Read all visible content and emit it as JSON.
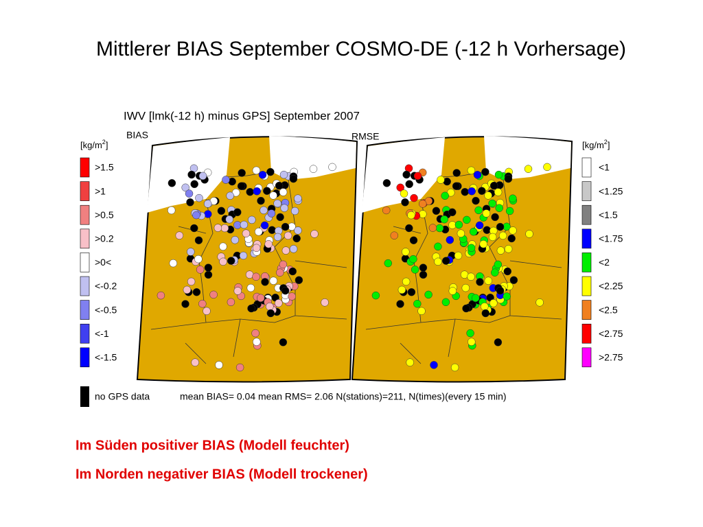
{
  "title": "Mittlerer BIAS September COSMO-DE (-12 h Vorhersage)",
  "figure": {
    "title": "IWV [lmk(-12 h) minus GPS] September 2007",
    "left_panel": "BIAS",
    "right_panel": "RMSE",
    "unit": {
      "base": "[kg/m",
      "exp": "2",
      "close": "]"
    },
    "left_legend": [
      {
        "label": ">1.5",
        "color": "#ff0000"
      },
      {
        "label": ">1",
        "color": "#f04040"
      },
      {
        "label": ">0.5",
        "color": "#f08080"
      },
      {
        "label": ">0.2",
        "color": "#f8c0c8"
      },
      {
        "label": ">0<",
        "color": "#ffffff"
      },
      {
        "label": "<-0.2",
        "color": "#c0c0f0"
      },
      {
        "label": "<-0.5",
        "color": "#8080f0"
      },
      {
        "label": "<-1",
        "color": "#4040f0"
      },
      {
        "label": "<-1.5",
        "color": "#0000ff"
      }
    ],
    "right_legend": [
      {
        "label": "<1",
        "color": "#ffffff"
      },
      {
        "label": "<1.25",
        "color": "#c8c8c8"
      },
      {
        "label": "<1.5",
        "color": "#808080"
      },
      {
        "label": "<1.75",
        "color": "#0000ff"
      },
      {
        "label": "<2",
        "color": "#00ee00"
      },
      {
        "label": "<2.25",
        "color": "#ffff00"
      },
      {
        "label": "<2.5",
        "color": "#f08020"
      },
      {
        "label": "<2.75",
        "color": "#ff0000"
      },
      {
        "label": ">2.75",
        "color": "#ff00ff"
      }
    ],
    "no_data": "no GPS data",
    "footer": "mean BIAS= 0.04  mean RMS= 2.06  N(stations)=211, N(times)(every 15 min)"
  },
  "notes": [
    "Im Süden positiver BIAS (Modell feuchter)",
    "Im Norden negativer BIAS (Modell trockener)"
  ]
}
